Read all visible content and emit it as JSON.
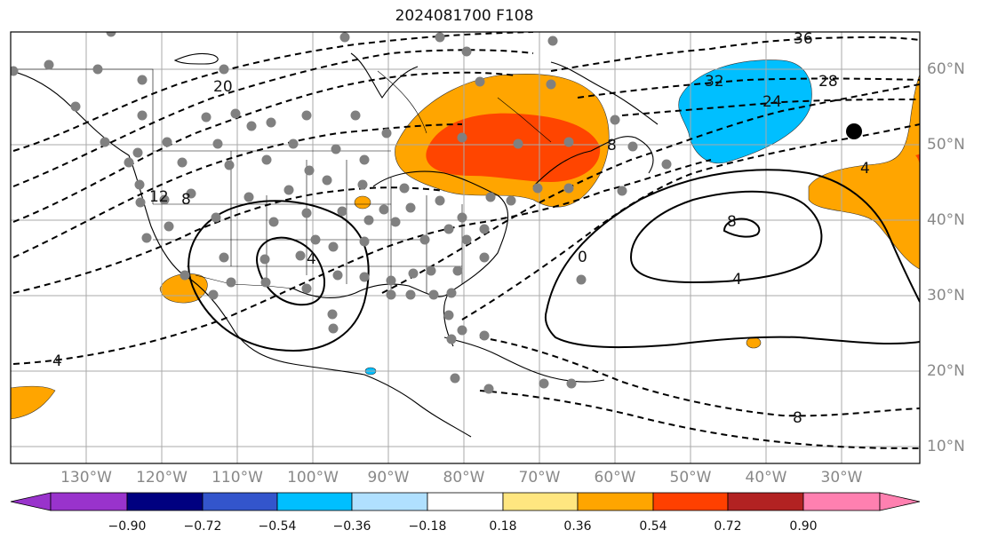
{
  "title": "2024081700 F108",
  "longitude_labels": [
    "130°W",
    "120°W",
    "110°W",
    "100°W",
    "90°W",
    "80°W",
    "70°W",
    "60°W",
    "50°W",
    "40°W",
    "30°W"
  ],
  "latitude_labels": [
    "60°N",
    "50°N",
    "40°N",
    "30°N",
    "20°N",
    "10°N"
  ],
  "contour_labels": [
    "36",
    "32",
    "28",
    "24",
    "20",
    "12",
    "8",
    "4",
    "0",
    "8",
    "4",
    "4",
    "4",
    "8",
    "8"
  ],
  "colorbar": {
    "ticks": [
      "−0.90",
      "−0.72",
      "−0.54",
      "−0.36",
      "−0.18",
      "0.18",
      "0.36",
      "0.54",
      "0.72",
      "0.90"
    ],
    "colors": [
      "#9933cc",
      "#000080",
      "#3355cc",
      "#00bfff",
      "#b0e0ff",
      "#ffffff",
      "#ffe680",
      "#ffa500",
      "#ff4000",
      "#b22222",
      "#ff80b0"
    ]
  },
  "colors": {
    "orange": "#ffa500",
    "red_orange": "#ff4500",
    "sky_blue": "#00bfff",
    "station_marker": "#808080",
    "grid": "#aaaaaa"
  }
}
